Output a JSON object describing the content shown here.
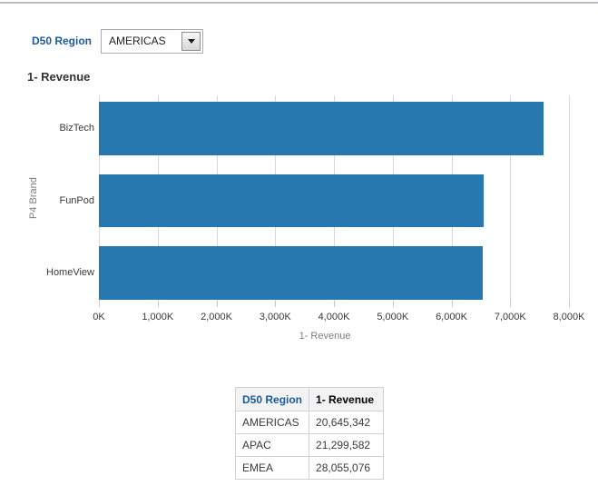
{
  "prompt": {
    "label": "D50 Region",
    "value": "AMERICAS"
  },
  "chart": {
    "title": "1- Revenue",
    "y_axis_title": "P4 Brand",
    "x_axis_title": "1- Revenue"
  },
  "chart_data": {
    "type": "bar",
    "orientation": "horizontal",
    "title": "1- Revenue",
    "categories": [
      "BizTech",
      "FunPod",
      "HomeView"
    ],
    "values": [
      7560000,
      6555000,
      6530000
    ],
    "xlabel": "1- Revenue",
    "ylabel": "P4 Brand",
    "xlim": [
      0,
      8000000
    ],
    "x_ticks": [
      "0K",
      "1,000K",
      "2,000K",
      "3,000K",
      "4,000K",
      "5,000K",
      "6,000K",
      "7,000K",
      "8,000K"
    ],
    "grid": true,
    "legend": "none",
    "bar_color": "#2878b0"
  },
  "table": {
    "columns": [
      "D50 Region",
      "1- Revenue"
    ],
    "rows": [
      [
        "AMERICAS",
        "20,645,342"
      ],
      [
        "APAC",
        "21,299,582"
      ],
      [
        "EMEA",
        "28,055,076"
      ]
    ]
  },
  "icons": {
    "dropdown": "chevron-down"
  },
  "colors": {
    "accent_blue": "#1b5a9b",
    "bar_blue": "#2878b0",
    "top_rule": "#b8bec9"
  }
}
